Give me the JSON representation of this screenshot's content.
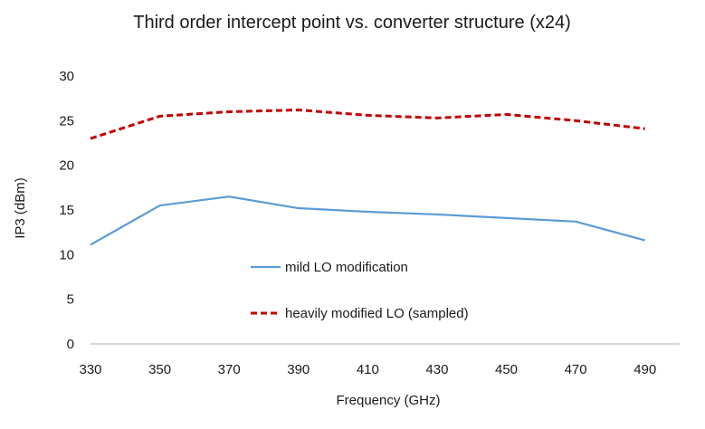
{
  "chart_data": {
    "type": "line",
    "title": "Third order intercept point vs. converter structure (x24)",
    "xlabel": "Frequency (GHz)",
    "ylabel": "IP3 (dBm)",
    "x": [
      330,
      350,
      370,
      390,
      410,
      430,
      450,
      470,
      490
    ],
    "xlim": [
      330,
      500
    ],
    "ylim": [
      0,
      30
    ],
    "yticks": [
      0,
      5,
      10,
      15,
      20,
      25,
      30
    ],
    "grid": false,
    "legend_position": "inside-center",
    "series": [
      {
        "name": "mild LO modification",
        "color": "#5b9bd5",
        "style": "solid",
        "values": [
          11.1,
          15.5,
          16.5,
          15.2,
          14.8,
          14.5,
          14.1,
          13.7,
          11.6
        ]
      },
      {
        "name": "heavily modified LO (sampled)",
        "color": "#c00000",
        "style": "dashed",
        "values": [
          23.0,
          25.5,
          26.0,
          26.2,
          25.6,
          25.3,
          25.7,
          25.0,
          24.1
        ]
      }
    ]
  }
}
